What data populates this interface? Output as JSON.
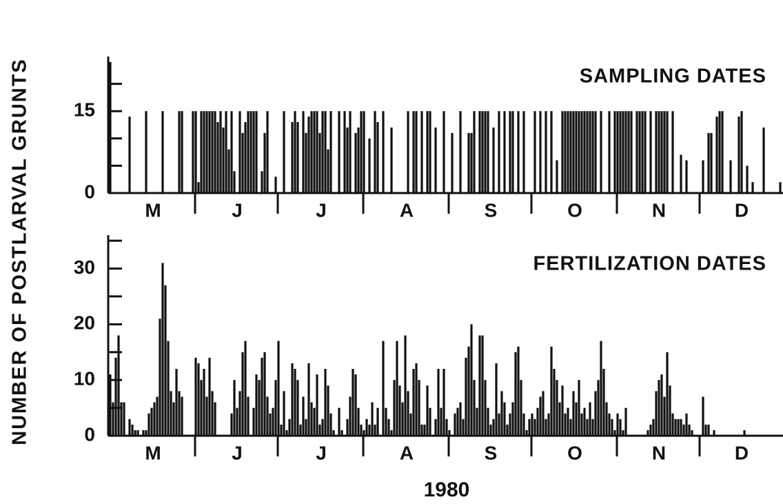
{
  "y_label": "NUMBER OF POSTLARVAL GRUNTS",
  "x_label": "1980",
  "chart_data": [
    {
      "type": "bar",
      "title": "SAMPLING DATES",
      "color": "#111111",
      "months": [
        "M",
        "J",
        "J",
        "A",
        "S",
        "O",
        "N",
        "D"
      ],
      "values": [
        [
          24,
          0,
          0,
          0,
          0,
          0,
          0,
          14,
          0,
          0,
          0,
          0,
          0,
          15,
          0,
          0,
          0,
          0,
          0,
          15,
          0,
          0,
          0,
          0,
          0,
          15,
          15,
          0,
          0,
          0,
          15
        ],
        [
          15,
          2,
          15,
          15,
          15,
          15,
          15,
          15,
          13,
          15,
          12,
          15,
          8,
          15,
          4,
          0,
          15,
          11,
          13,
          15,
          15,
          15,
          15,
          0,
          4,
          11,
          15,
          0,
          0,
          3
        ],
        [
          0,
          0,
          15,
          0,
          0,
          13,
          15,
          13,
          0,
          15,
          11,
          14,
          15,
          15,
          15,
          11,
          15,
          15,
          8,
          15,
          0,
          0,
          15,
          0,
          15,
          12,
          15,
          0,
          11,
          12,
          15
        ],
        [
          15,
          0,
          10,
          0,
          15,
          13,
          0,
          15,
          0,
          0,
          12,
          0,
          0,
          0,
          0,
          0,
          15,
          0,
          15,
          15,
          0,
          15,
          0,
          15,
          15,
          0,
          12,
          0,
          0,
          15,
          0
        ],
        [
          0,
          11,
          0,
          0,
          15,
          0,
          0,
          11,
          11,
          15,
          0,
          15,
          15,
          15,
          15,
          0,
          12,
          0,
          15,
          0,
          15,
          0,
          15,
          15,
          0,
          15,
          0,
          15,
          0,
          0
        ],
        [
          0,
          15,
          0,
          15,
          0,
          15,
          0,
          15,
          0,
          6,
          0,
          15,
          15,
          15,
          15,
          15,
          15,
          15,
          15,
          15,
          15,
          15,
          15,
          15,
          0,
          15,
          0,
          0,
          15,
          0,
          15
        ],
        [
          15,
          15,
          15,
          15,
          15,
          15,
          0,
          15,
          15,
          15,
          15,
          0,
          15,
          0,
          15,
          15,
          15,
          15,
          15,
          0,
          15,
          0,
          0,
          7,
          0,
          6,
          0,
          0,
          0,
          0
        ],
        [
          0,
          6,
          0,
          11,
          11,
          0,
          14,
          15,
          15,
          0,
          0,
          6,
          0,
          0,
          14,
          15,
          0,
          5,
          0,
          2,
          0,
          0,
          0,
          12,
          0,
          0,
          0,
          0,
          0,
          2
        ]
      ],
      "ylim": [
        0,
        25
      ],
      "yticks": [
        0,
        15
      ],
      "minor_yticks": [
        5,
        10,
        20
      ]
    },
    {
      "type": "bar",
      "title": "FERTILIZATION DATES",
      "color": "#111111",
      "months": [
        "M",
        "J",
        "J",
        "A",
        "S",
        "O",
        "N",
        "D"
      ],
      "values": [
        [
          11,
          6,
          14,
          18,
          6,
          6,
          0,
          3,
          2,
          1,
          1,
          0,
          1,
          1,
          4,
          5,
          6,
          7,
          21,
          31,
          27,
          17,
          8,
          6,
          12,
          8,
          7,
          0,
          0,
          0,
          0
        ],
        [
          14,
          13,
          10,
          12,
          7,
          14,
          8,
          6,
          0,
          0,
          0,
          0,
          0,
          4,
          10,
          5,
          8,
          15,
          17,
          7,
          0,
          5,
          11,
          10,
          14,
          15,
          7,
          4,
          5,
          10
        ],
        [
          17,
          2,
          8,
          1,
          3,
          13,
          12,
          10,
          2,
          7,
          3,
          13,
          6,
          5,
          11,
          2,
          3,
          12,
          9,
          4,
          1,
          0,
          5,
          1,
          0,
          3,
          7,
          12,
          11,
          5,
          2
        ],
        [
          1,
          3,
          2,
          6,
          2,
          5,
          0,
          17,
          5,
          3,
          1,
          10,
          17,
          9,
          6,
          18,
          8,
          4,
          12,
          13,
          10,
          2,
          2,
          9,
          5,
          0,
          3,
          12,
          5,
          12,
          3
        ],
        [
          1,
          0,
          4,
          5,
          6,
          3,
          14,
          16,
          20,
          10,
          5,
          18,
          18,
          10,
          5,
          2,
          3,
          13,
          4,
          8,
          6,
          2,
          4,
          6,
          15,
          16,
          10,
          4,
          1,
          3
        ],
        [
          4,
          3,
          5,
          7,
          8,
          3,
          4,
          16,
          12,
          10,
          6,
          9,
          4,
          5,
          3,
          8,
          6,
          10,
          4,
          5,
          3,
          6,
          3,
          8,
          10,
          17,
          12,
          6,
          4,
          3,
          1
        ],
        [
          4,
          3,
          1,
          5,
          0,
          0,
          0,
          0,
          0,
          0,
          0,
          1,
          2,
          3,
          8,
          10,
          11,
          7,
          15,
          9,
          4,
          3,
          3,
          3,
          2,
          4,
          2,
          1,
          0,
          0
        ],
        [
          0,
          7,
          2,
          2,
          0,
          1,
          0,
          0,
          0,
          0,
          0,
          0,
          0,
          0,
          0,
          0,
          1,
          0,
          0,
          0,
          0,
          0,
          0,
          0,
          0,
          0,
          0,
          0,
          0,
          0
        ]
      ],
      "ylim": [
        0,
        36
      ],
      "yticks": [
        0,
        10,
        20,
        30
      ],
      "minor_yticks": [
        5,
        15,
        25,
        35
      ]
    }
  ]
}
